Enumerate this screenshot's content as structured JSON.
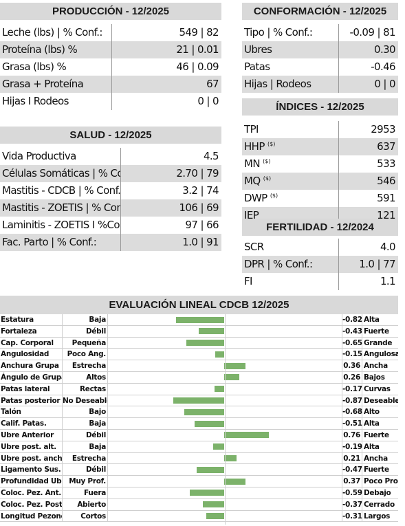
{
  "produccion": {
    "title": "PRODUCCIÓN - 12/2025",
    "rows": [
      {
        "label": "Leche (lbs) | % Conf.:",
        "value": "549 | 82"
      },
      {
        "label": "Proteína (lbs) %",
        "value": "21 | 0.01"
      },
      {
        "label": "Grasa (lbs) %",
        "value": "46 | 0.09"
      },
      {
        "label": "Grasa + Proteína",
        "value": "67"
      },
      {
        "label": "Hijas I Rodeos",
        "value": "0 | 0"
      }
    ]
  },
  "salud": {
    "title": "SALUD - 12/2025",
    "rows": [
      {
        "label": "Vida Productiva",
        "value": "4.5"
      },
      {
        "label": "Células Somáticas | % Conf.:",
        "value": "2.70 | 79"
      },
      {
        "label": "Mastitis - CDCB | % Conf.:",
        "value": "3.2 | 74"
      },
      {
        "label": "Mastitis - ZOETIS | % Conf.:",
        "value": "106 | 69"
      },
      {
        "label": "Laminitis - ZOETIS I %Conf.:",
        "value": "97 | 66"
      },
      {
        "label": "Fac. Parto | % Conf.:",
        "value": "1.0 | 91"
      }
    ]
  },
  "conformacion": {
    "title": "CONFORMACIÓN - 12/2025",
    "rows": [
      {
        "label": "Tipo | % Conf.:",
        "value": "-0.09 | 81"
      },
      {
        "label": "Ubres",
        "value": "0.30"
      },
      {
        "label": "Patas",
        "value": "-0.46"
      },
      {
        "label": "Hijas | Rodeos",
        "value": "0 | 0"
      }
    ]
  },
  "indices": {
    "title": "ÍNDICES - 12/2025",
    "sup": "($)",
    "rows": [
      {
        "label": "TPI",
        "sup": false,
        "value": "2953"
      },
      {
        "label": "HHP",
        "sup": true,
        "value": "637"
      },
      {
        "label": "MN",
        "sup": true,
        "value": "533"
      },
      {
        "label": "MQ",
        "sup": true,
        "value": "546"
      },
      {
        "label": "DWP",
        "sup": true,
        "value": "591"
      },
      {
        "label": "IEP",
        "sup": false,
        "value": "121"
      }
    ]
  },
  "fertilidad": {
    "title": "FERTILIDAD - 12/2024",
    "rows": [
      {
        "label": "SCR",
        "value": "4.0"
      },
      {
        "label": "DPR | % Conf.:",
        "value": "1.0 | 77"
      },
      {
        "label": "FI",
        "value": "1.1"
      }
    ]
  },
  "evaluacion": {
    "title": "EVALUACIÓN LINEAL CDCB 12/2025",
    "colors": {
      "bar": "#7cb26a"
    },
    "rows": [
      {
        "trait": "Estatura",
        "low": "Baja",
        "value": -0.82,
        "value_label": "-0.82",
        "high": "Alta"
      },
      {
        "trait": "Fortaleza",
        "low": "Débil",
        "value": -0.43,
        "value_label": "-0.43",
        "high": "Fuerte"
      },
      {
        "trait": "Cap. Corporal",
        "low": "Pequeña",
        "value": -0.65,
        "value_label": "-0.65",
        "high": "Grande"
      },
      {
        "trait": "Angulosidad",
        "low": "Poco Ang.",
        "value": -0.15,
        "value_label": "-0.15",
        "high": "Angulosa"
      },
      {
        "trait": "Anchura Grupa",
        "low": "Estrecha",
        "value": 0.36,
        "value_label": "0.36",
        "high": "Ancha"
      },
      {
        "trait": "Ángulo de Grupa",
        "low": "Altos",
        "value": 0.26,
        "value_label": "0.26",
        "high": "Bajos"
      },
      {
        "trait": "Patas lateral",
        "low": "Rectas",
        "value": -0.17,
        "value_label": "-0.17",
        "high": "Curvas"
      },
      {
        "trait": "Patas posterior",
        "low": "No Deseable",
        "value": -0.87,
        "value_label": "-0.87",
        "high": "Deseable"
      },
      {
        "trait": "Talón",
        "low": "Bajo",
        "value": -0.68,
        "value_label": "-0.68",
        "high": "Alto"
      },
      {
        "trait": "Calif. Patas.",
        "low": "Baja",
        "value": -0.51,
        "value_label": "-0.51",
        "high": "Alta"
      },
      {
        "trait": "Ubre Anterior",
        "low": "Débil",
        "value": 0.76,
        "value_label": "0.76",
        "high": "Fuerte"
      },
      {
        "trait": "Ubre post. alt.",
        "low": "Baja",
        "value": -0.19,
        "value_label": "-0.19",
        "high": "Alta"
      },
      {
        "trait": "Ubre post. anch.",
        "low": "Estrecha",
        "value": 0.21,
        "value_label": "0.21",
        "high": "Ancha"
      },
      {
        "trait": "Ligamento Sus.",
        "low": "Débil",
        "value": -0.47,
        "value_label": "-0.47",
        "high": "Fuerte"
      },
      {
        "trait": "Profundidad Ubre",
        "low": "Muy Prof.",
        "value": 0.37,
        "value_label": "0.37",
        "high": "Poco Prof."
      },
      {
        "trait": "Coloc. Pez. Ant.",
        "low": "Fuera",
        "value": -0.59,
        "value_label": "-0.59",
        "high": "Debajo"
      },
      {
        "trait": "Coloc. Pez. Post.",
        "low": "Abierto",
        "value": -0.37,
        "value_label": "-0.37",
        "high": "Cerrado"
      },
      {
        "trait": "Longitud Pezones",
        "low": "Cortos",
        "value": -0.31,
        "value_label": "-0.31",
        "high": "Largos"
      }
    ]
  }
}
